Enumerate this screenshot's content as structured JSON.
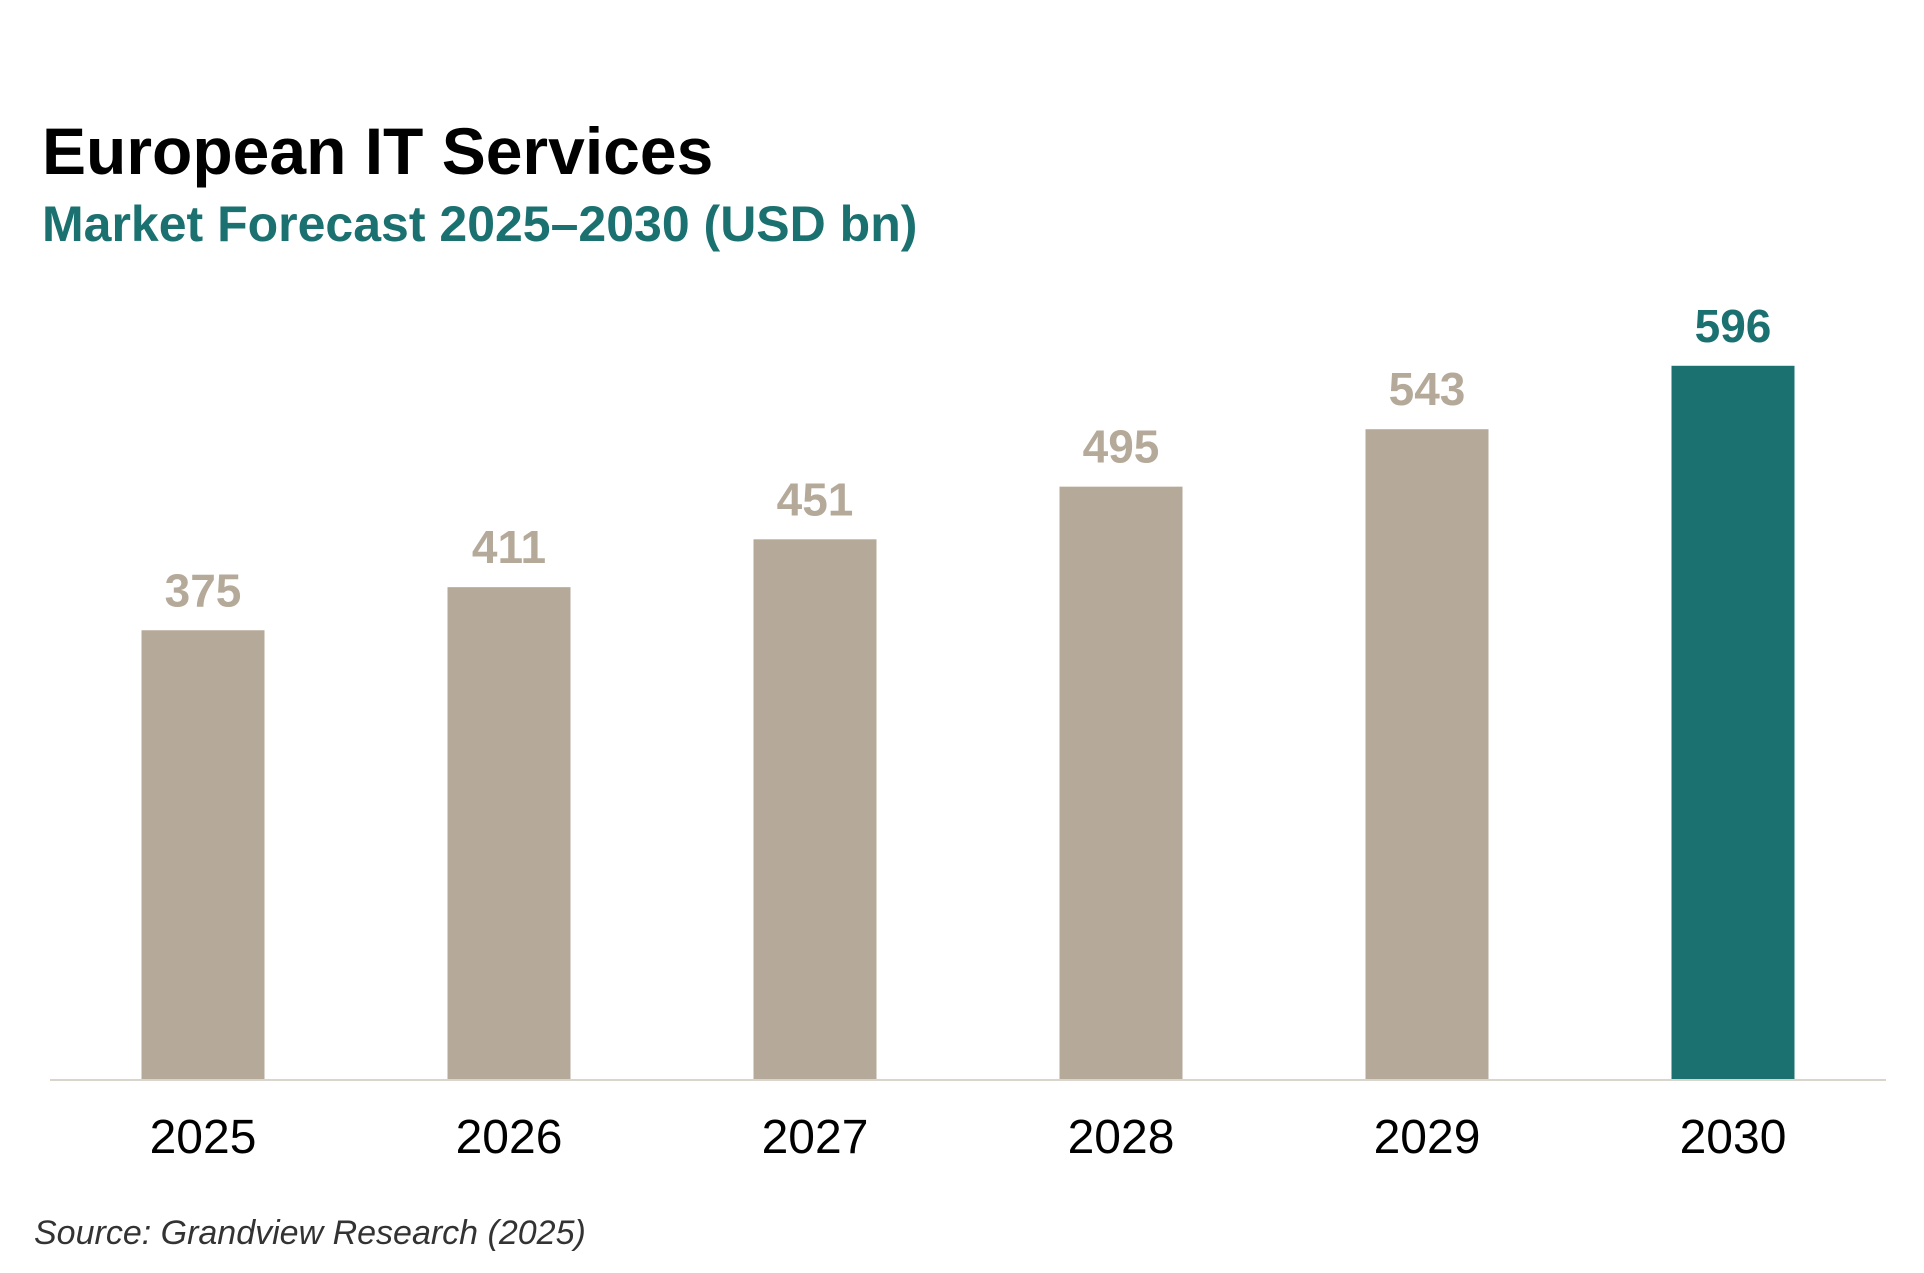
{
  "header": {
    "title": "European IT Services",
    "subtitle": "Market Forecast 2025–2030 (USD bn)"
  },
  "footer": {
    "source": "Source: Grandview Research (2025)"
  },
  "colors": {
    "bar": "#b5aa99",
    "highlight": "#1b7070",
    "axis": "#d9d4cc",
    "tick_label": "#000000"
  },
  "chart_data": {
    "type": "bar",
    "title": "European IT Services",
    "subtitle": "Market Forecast 2025–2030 (USD bn)",
    "xlabel": "",
    "ylabel": "",
    "categories": [
      "2025",
      "2026",
      "2027",
      "2028",
      "2029",
      "2030"
    ],
    "values": [
      375,
      411,
      451,
      495,
      543,
      596
    ],
    "data_labels": [
      "375",
      "411",
      "451",
      "495",
      "543",
      "596"
    ],
    "highlight_category": "2030",
    "ylim": [
      0,
      600
    ],
    "grid": false,
    "legend": "none"
  }
}
